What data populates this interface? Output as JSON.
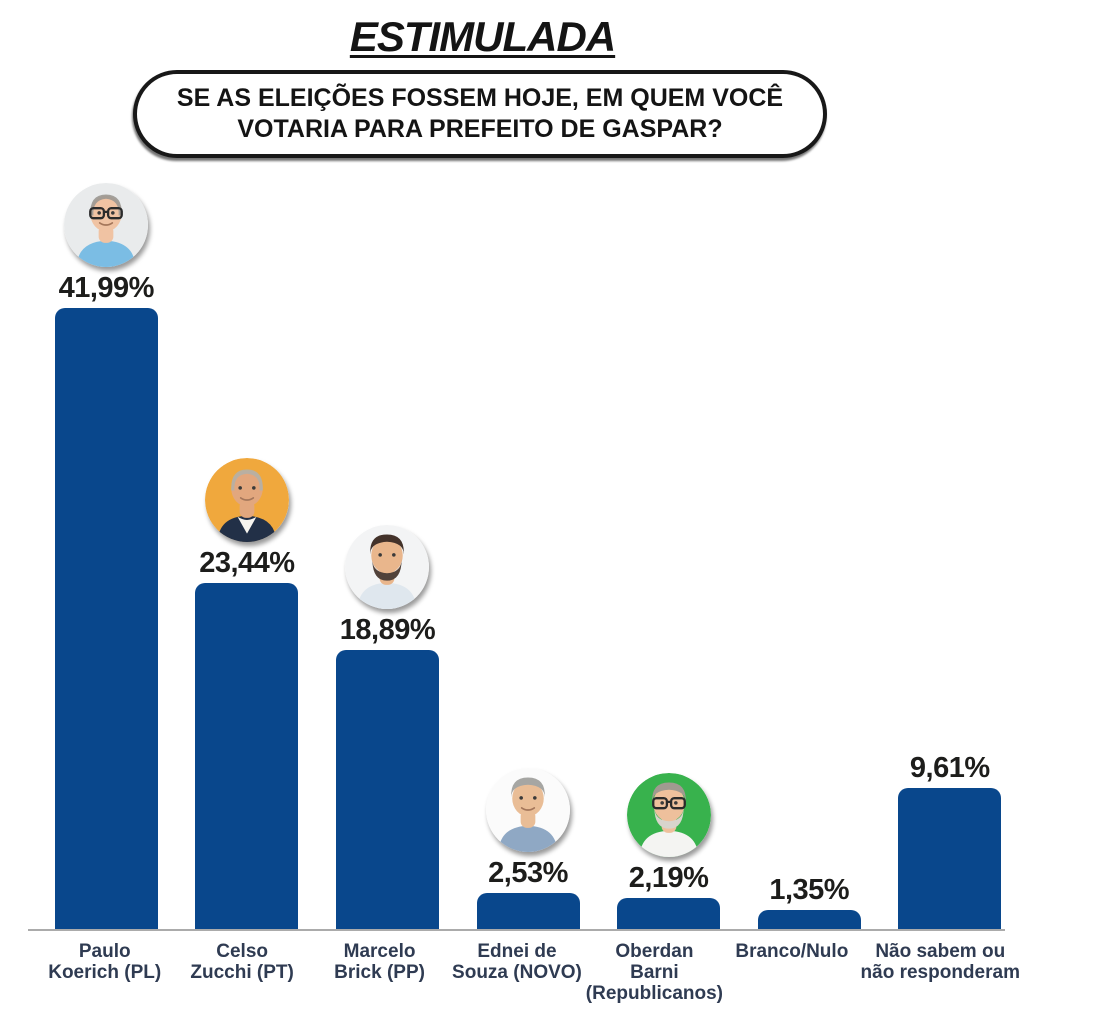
{
  "header": {
    "title": "ESTIMULADA",
    "question_line1": "SE AS ELEIÇÕES FOSSEM HOJE, EM QUEM VOCÊ",
    "question_line2": "VOTARIA PARA PREFEITO DE GASPAR?"
  },
  "chart_data": {
    "type": "bar",
    "title": "ESTIMULADA",
    "question": "SE AS ELEIÇÕES FOSSEM HOJE, EM QUEM VOCÊ VOTARIA PARA PREFEITO DE GASPAR?",
    "xlabel": "",
    "ylabel": "",
    "ylim": [
      0,
      45
    ],
    "grid": false,
    "legend": "none",
    "bar_color": "#09478c",
    "axis_line_color": "#ababab",
    "category_label_color": "#2f3b52",
    "value_label_color": "#1d1d1b",
    "categories": [
      "Paulo Koerich (PL)",
      "Celso Zucchi (PT)",
      "Marcelo Brick (PP)",
      "Ednei de Souza (NOVO)",
      "Oberdan Barni (Republicanos)",
      "Branco/Nulo",
      "Não sabem ou não responderam"
    ],
    "values": [
      41.99,
      23.44,
      18.89,
      2.53,
      2.19,
      1.35,
      9.61
    ],
    "bars": [
      {
        "name": "Paulo Koerich (PL)",
        "label_lines": [
          "Paulo",
          "Koerich (PL)"
        ],
        "value": 41.99,
        "display": "41,99%",
        "avatar": {
          "bg": "#e9ebec",
          "skin": "#f0c3a3",
          "hair": "#9b9892",
          "shirt": "#7bbde4",
          "glasses": true,
          "bald": true,
          "beard": null,
          "collar": null
        }
      },
      {
        "name": "Celso Zucchi (PT)",
        "label_lines": [
          "Celso",
          "Zucchi (PT)"
        ],
        "value": 23.44,
        "display": "23,44%",
        "avatar": {
          "bg": "#f0a83d",
          "skin": "#e2a77e",
          "hair": "#b5b0a6",
          "shirt": "#223047",
          "glasses": false,
          "bald": true,
          "beard": null,
          "collar": "#f6f4ef"
        }
      },
      {
        "name": "Marcelo Brick (PP)",
        "label_lines": [
          "Marcelo",
          "Brick (PP)"
        ],
        "value": 18.89,
        "display": "18,89%",
        "avatar": {
          "bg": "#f3f4f5",
          "skin": "#e9b68c",
          "hair": "#43322a",
          "shirt": "#dfe7ee",
          "glasses": false,
          "bald": false,
          "beard": "#51423a",
          "collar": null
        }
      },
      {
        "name": "Ednei de Souza (NOVO)",
        "label_lines": [
          "Ednei de",
          "Souza (NOVO)"
        ],
        "value": 2.53,
        "display": "2,53%",
        "avatar": {
          "bg": "#fbfbfb",
          "skin": "#e9bd96",
          "hair": "#a6a6a3",
          "shirt": "#8fa8c4",
          "glasses": false,
          "bald": false,
          "beard": null,
          "collar": null
        }
      },
      {
        "name": "Oberdan Barni (Republicanos)",
        "label_lines": [
          "Oberdan",
          "Barni",
          "(Republicanos)"
        ],
        "value": 2.19,
        "display": "2,19%",
        "avatar": {
          "bg": "#38b24d",
          "skin": "#eec09c",
          "hair": "#a09a90",
          "shirt": "#f4f4f2",
          "glasses": true,
          "bald": false,
          "beard": "#d8d4cc",
          "collar": null
        }
      },
      {
        "name": "Branco/Nulo",
        "label_lines": [
          "Branco/Nulo"
        ],
        "value": 1.35,
        "display": "1,35%",
        "avatar": null
      },
      {
        "name": "Não sabem ou não responderam",
        "label_lines": [
          "Não sabem ou",
          "não responderam"
        ],
        "value": 9.61,
        "display": "9,61%",
        "avatar": null
      }
    ]
  }
}
